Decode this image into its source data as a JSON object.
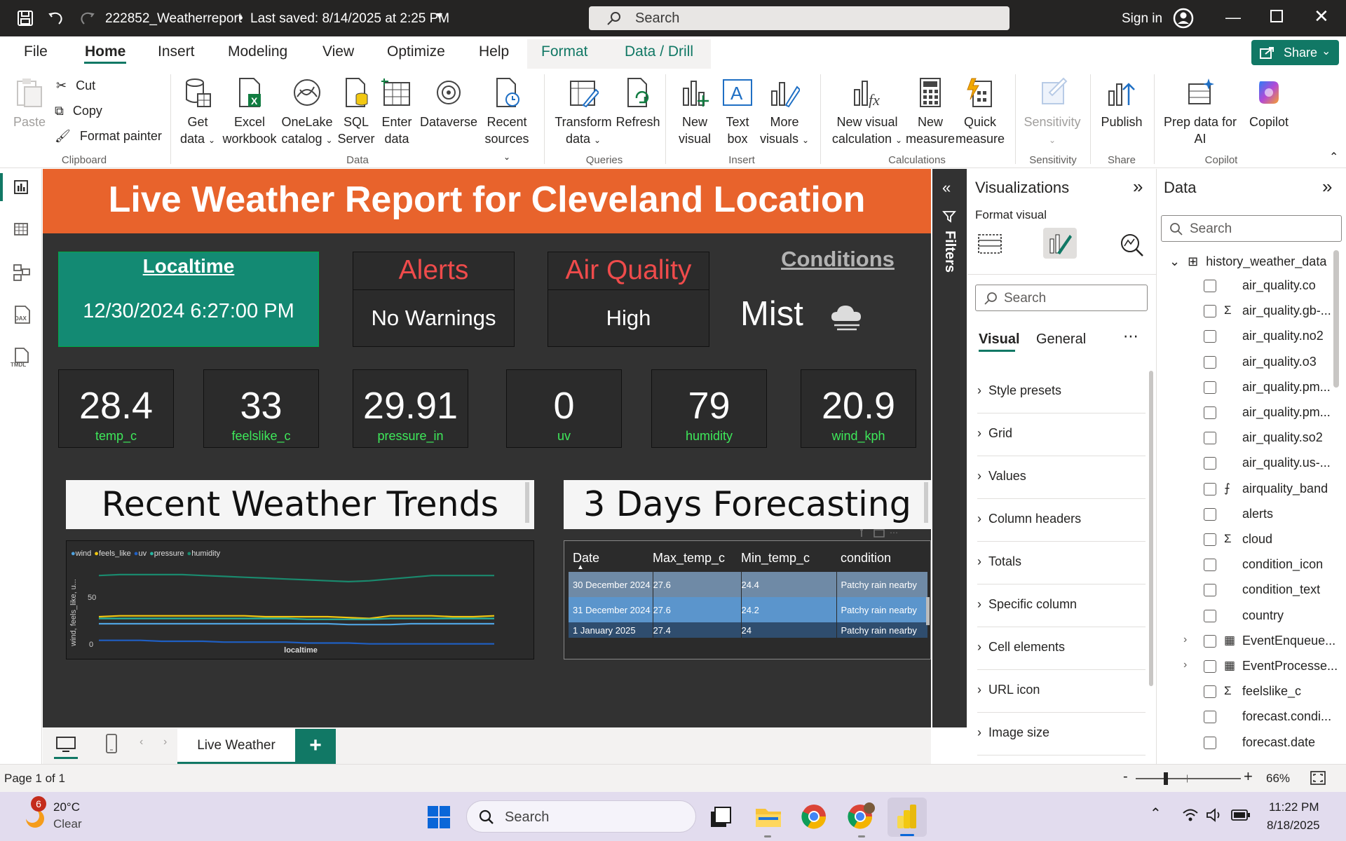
{
  "window": {
    "filename": "222852_Weatherreport",
    "saved": "Last saved: 8/14/2025 at 2:25 PM",
    "search_placeholder": "Search",
    "sign_in": "Sign in"
  },
  "menu": {
    "items": [
      "File",
      "Home",
      "Insert",
      "Modeling",
      "View",
      "Optimize",
      "Help",
      "Format",
      "Data / Drill"
    ],
    "share": "Share"
  },
  "ribbon": {
    "clipboard": {
      "paste": "Paste",
      "cut": "Cut",
      "copy": "Copy",
      "format_painter": "Format painter",
      "group": "Clipboard"
    },
    "data": {
      "get_data": [
        "Get",
        "data"
      ],
      "excel": [
        "Excel",
        "workbook"
      ],
      "onelake": [
        "OneLake",
        "catalog"
      ],
      "sql": [
        "SQL",
        "Server"
      ],
      "enter": [
        "Enter",
        "data"
      ],
      "dataverse": "Dataverse",
      "recent": [
        "Recent",
        "sources"
      ],
      "group": "Data"
    },
    "queries": {
      "transform": [
        "Transform",
        "data"
      ],
      "refresh": "Refresh",
      "group": "Queries"
    },
    "insert": {
      "new_visual": [
        "New",
        "visual"
      ],
      "text_box": [
        "Text",
        "box"
      ],
      "more": [
        "More",
        "visuals"
      ],
      "group": "Insert"
    },
    "calculations": {
      "new_visual_calc": [
        "New visual",
        "calculation"
      ],
      "new_measure": [
        "New",
        "measure"
      ],
      "quick_measure": [
        "Quick",
        "measure"
      ],
      "group": "Calculations"
    },
    "sensitivity": {
      "label": "Sensitivity",
      "group": "Sensitivity"
    },
    "share": {
      "publish": "Publish",
      "group": "Share"
    },
    "copilot": {
      "prep": [
        "Prep data for",
        "AI"
      ],
      "copilot": "Copilot",
      "group": "Copilot"
    }
  },
  "report": {
    "banner": "Live Weather Report for Cleveland Location",
    "localtime": {
      "title": "Localtime",
      "value": "12/30/2024 6:27:00 PM"
    },
    "alerts": {
      "title": "Alerts",
      "value": "No Warnings"
    },
    "air_quality": {
      "title": "Air Quality",
      "value": "High"
    },
    "conditions": {
      "title": "Conditions",
      "value": "Mist"
    },
    "kpis": [
      {
        "value": "28.4",
        "label": "temp_c"
      },
      {
        "value": "33",
        "label": "feelslike_c"
      },
      {
        "value": "29.91",
        "label": "pressure_in"
      },
      {
        "value": "0",
        "label": "uv"
      },
      {
        "value": "79",
        "label": "humidity"
      },
      {
        "value": "20.9",
        "label": "wind_kph"
      }
    ],
    "trends_title": "Recent Weather Trends",
    "forecast_title": "3 Days Forecasting",
    "forecast_table": {
      "headers": [
        "Date",
        "Max_temp_c",
        "Min_temp_c",
        "condition"
      ],
      "rows": [
        [
          "30 December 2024",
          "27.6",
          "24.4",
          "Patchy rain nearby"
        ],
        [
          "31 December 2024",
          "27.6",
          "24.2",
          "Patchy rain nearby"
        ],
        [
          "1 January 2025",
          "27.4",
          "24",
          "Patchy rain nearby"
        ]
      ]
    }
  },
  "chart_data": {
    "type": "line",
    "title": "",
    "xlabel": "localtime",
    "ylabel": "wind, feels_like, u...",
    "ylim": [
      0,
      100
    ],
    "yticks": [
      "0",
      "50"
    ],
    "legend_position": "top-left",
    "series": [
      {
        "name": "wind",
        "color": "#4fa3e0",
        "values": [
          24,
          24,
          24,
          24,
          24,
          24,
          24,
          24,
          24,
          24,
          24,
          24,
          23,
          23,
          23,
          24,
          24,
          24,
          24,
          24
        ]
      },
      {
        "name": "feels_like",
        "color": "#f2c811",
        "values": [
          32,
          33,
          33,
          33,
          33,
          33,
          33,
          33,
          32,
          32,
          32,
          32,
          31,
          30,
          33,
          33,
          33,
          32,
          32,
          33
        ]
      },
      {
        "name": "uv",
        "color": "#1f5fc4",
        "values": [
          5,
          5,
          5,
          4,
          4,
          4,
          3,
          3,
          3,
          3,
          2,
          2,
          2,
          1,
          1,
          1,
          1,
          1,
          1,
          1
        ]
      },
      {
        "name": "pressure",
        "color": "#26b5a0",
        "values": [
          30,
          30,
          30,
          30,
          30,
          30,
          30,
          30,
          30,
          30,
          29,
          29,
          29,
          29,
          30,
          30,
          30,
          30,
          30,
          30
        ]
      },
      {
        "name": "humidity",
        "color": "#1a8a6e",
        "values": [
          79,
          80,
          80,
          80,
          80,
          79,
          78,
          77,
          76,
          75,
          74,
          73,
          72,
          73,
          75,
          77,
          79,
          79,
          79,
          79
        ]
      }
    ]
  },
  "visualizations": {
    "title": "Visualizations",
    "format_visual": "Format visual",
    "search": "Search",
    "tabs": [
      "Visual",
      "General"
    ],
    "items": [
      "Style presets",
      "Grid",
      "Values",
      "Column headers",
      "Totals",
      "Specific column",
      "Cell elements",
      "URL icon",
      "Image size"
    ]
  },
  "filters": {
    "label": "Filters"
  },
  "data_pane": {
    "title": "Data",
    "search": "Search",
    "table": "history_weather_data",
    "fields": [
      "air_quality.co",
      "air_quality.gb-...",
      "air_quality.no2",
      "air_quality.o3",
      "air_quality.pm...",
      "air_quality.pm...",
      "air_quality.so2",
      "air_quality.us-...",
      "airquality_band",
      "alerts",
      "cloud",
      "condition_icon",
      "condition_text",
      "country",
      "EventEnqueue...",
      "EventProcesse...",
      "feelslike_c",
      "forecast.condi...",
      "forecast.date"
    ]
  },
  "page_tabs": {
    "active": "Live Weather"
  },
  "status": {
    "page": "Page 1 of 1",
    "zoom": "66%"
  },
  "taskbar": {
    "weather_temp": "20°C",
    "weather_desc": "Clear",
    "weather_badge": "6",
    "search": "Search",
    "time": "11:22 PM",
    "date": "8/18/2025"
  }
}
